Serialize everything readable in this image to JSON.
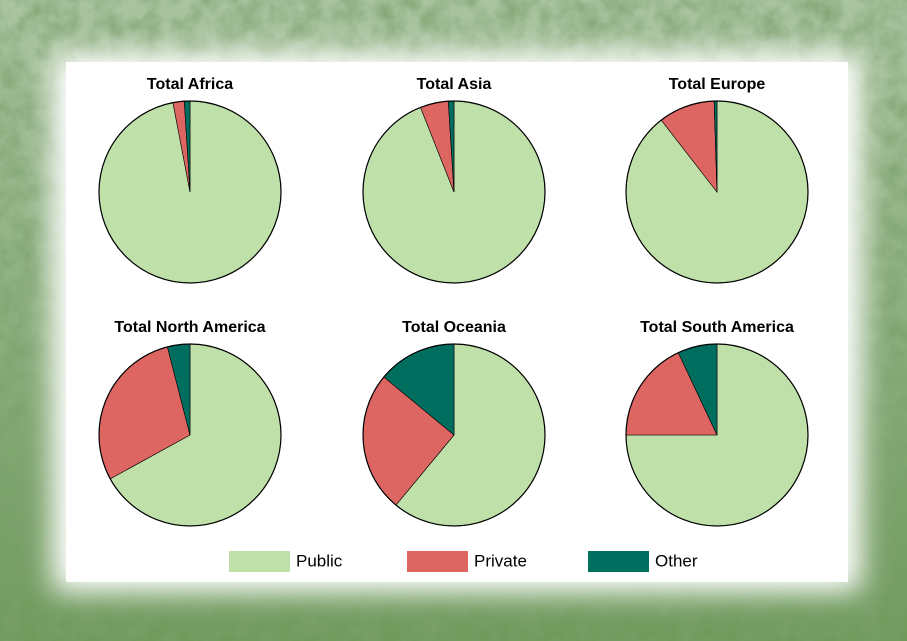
{
  "chart_data": [
    {
      "type": "pie",
      "title": "Total Africa",
      "categories": [
        "Public",
        "Private",
        "Other"
      ],
      "values": [
        97,
        2,
        1
      ],
      "colors": [
        "#bfe0a8",
        "#dd6663",
        "#006e5f"
      ]
    },
    {
      "type": "pie",
      "title": "Total Asia",
      "categories": [
        "Public",
        "Private",
        "Other"
      ],
      "values": [
        94,
        5,
        1
      ],
      "colors": [
        "#bfe0a8",
        "#dd6663",
        "#006e5f"
      ]
    },
    {
      "type": "pie",
      "title": "Total Europe",
      "categories": [
        "Public",
        "Private",
        "Other"
      ],
      "values": [
        89.5,
        10,
        0.5
      ],
      "colors": [
        "#bfe0a8",
        "#dd6663",
        "#006e5f"
      ]
    },
    {
      "type": "pie",
      "title": "Total North America",
      "categories": [
        "Public",
        "Private",
        "Other"
      ],
      "values": [
        67,
        29,
        4
      ],
      "colors": [
        "#bfe0a8",
        "#dd6663",
        "#006e5f"
      ]
    },
    {
      "type": "pie",
      "title": "Total Oceania",
      "categories": [
        "Public",
        "Private",
        "Other"
      ],
      "values": [
        61,
        25,
        14
      ],
      "colors": [
        "#bfe0a8",
        "#dd6663",
        "#006e5f"
      ]
    },
    {
      "type": "pie",
      "title": "Total South America",
      "categories": [
        "Public",
        "Private",
        "Other"
      ],
      "values": [
        75,
        18,
        7
      ],
      "colors": [
        "#bfe0a8",
        "#dd6663",
        "#006e5f"
      ]
    }
  ]
}
